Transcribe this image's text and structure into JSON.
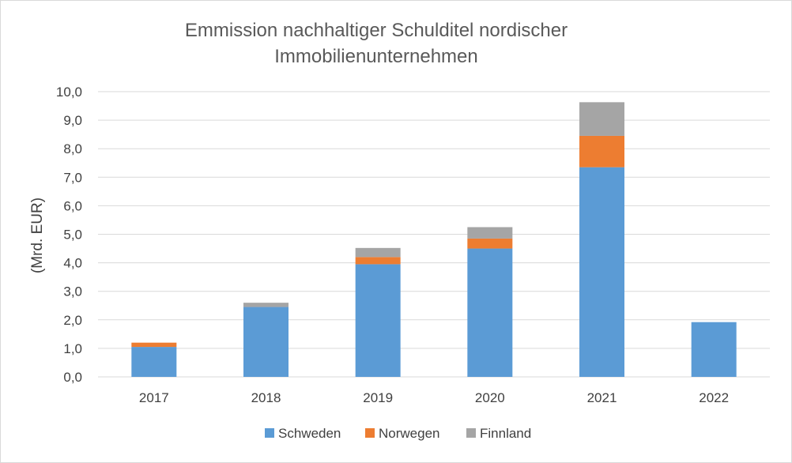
{
  "chart_data": {
    "type": "bar",
    "stacked": true,
    "title_lines": [
      "Emmission nachhaltiger Schulditel nordischer",
      "Immobilienunternehmen"
    ],
    "xlabel": "",
    "ylabel": "(Mrd. EUR)",
    "categories": [
      "2017",
      "2018",
      "2019",
      "2020",
      "2021",
      "2022"
    ],
    "ylim": [
      0,
      10
    ],
    "yticks": [
      "0,0",
      "1,0",
      "2,0",
      "3,0",
      "4,0",
      "5,0",
      "6,0",
      "7,0",
      "8,0",
      "9,0",
      "10,0"
    ],
    "grid": true,
    "legend_position": "bottom",
    "series": [
      {
        "name": "Schweden",
        "color": "#5b9bd5",
        "values": [
          1.05,
          2.45,
          3.95,
          4.5,
          7.35,
          1.92
        ]
      },
      {
        "name": "Norwegen",
        "color": "#ed7d31",
        "values": [
          0.15,
          0.0,
          0.25,
          0.35,
          1.1,
          0.0
        ]
      },
      {
        "name": "Finnland",
        "color": "#a5a5a5",
        "values": [
          0.0,
          0.15,
          0.32,
          0.4,
          1.18,
          0.0
        ]
      }
    ]
  }
}
